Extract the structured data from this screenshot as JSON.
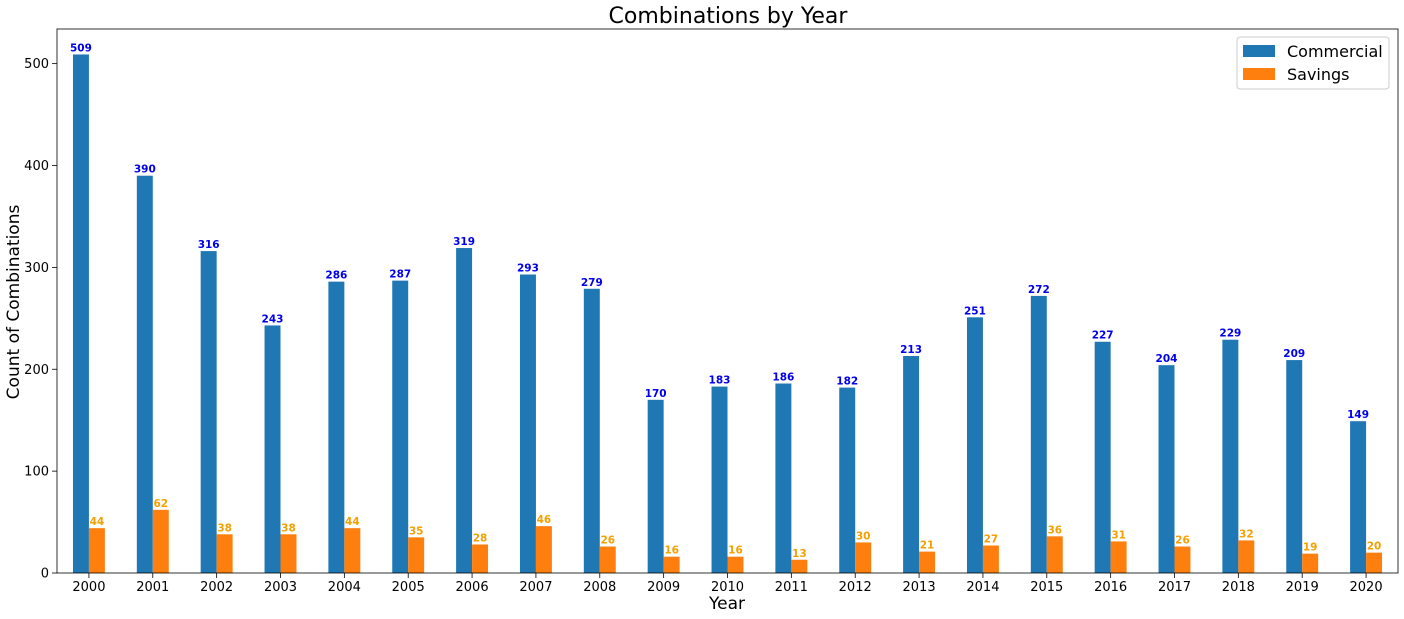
{
  "chart_data": {
    "type": "bar",
    "title": "Combinations by Year",
    "xlabel": "Year",
    "ylabel": "Count of Combinations",
    "categories": [
      "2000",
      "2001",
      "2002",
      "2003",
      "2004",
      "2005",
      "2006",
      "2007",
      "2008",
      "2009",
      "2010",
      "2011",
      "2012",
      "2013",
      "2014",
      "2015",
      "2016",
      "2017",
      "2018",
      "2019",
      "2020"
    ],
    "series": [
      {
        "name": "Commercial",
        "color": "#1f77b4",
        "label_color": "#0000ee",
        "values": [
          509,
          390,
          316,
          243,
          286,
          287,
          319,
          293,
          279,
          170,
          183,
          186,
          182,
          213,
          251,
          272,
          227,
          204,
          229,
          209,
          149
        ]
      },
      {
        "name": "Savings",
        "color": "#ff7f0e",
        "label_color": "#f5a000",
        "values": [
          44,
          62,
          38,
          38,
          44,
          35,
          28,
          46,
          26,
          16,
          16,
          13,
          30,
          21,
          27,
          36,
          31,
          26,
          32,
          19,
          20
        ]
      }
    ],
    "ylim": [
      0,
      534
    ],
    "yticks": [
      0,
      100,
      200,
      300,
      400,
      500
    ],
    "grid": false,
    "legend_position": "top-right"
  }
}
